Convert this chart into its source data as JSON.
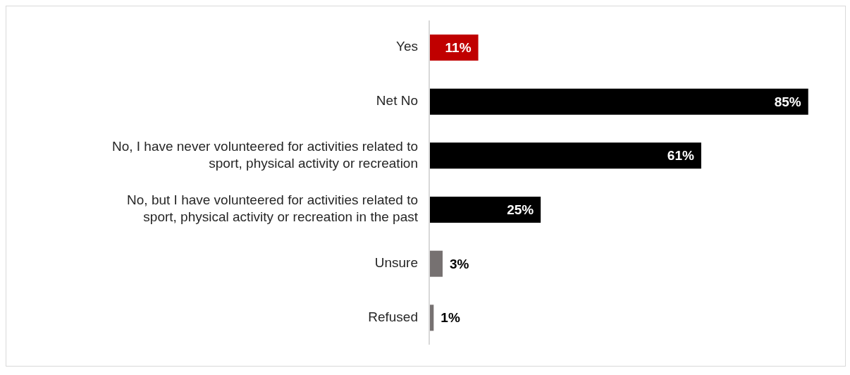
{
  "chart_data": {
    "type": "bar",
    "orientation": "horizontal",
    "categories": [
      "Yes",
      "Net No",
      "No, I have never volunteered for activities related to sport, physical activity or recreation",
      "No, but I have volunteered for activities related to sport, physical activity or recreation in the past",
      "Unsure",
      "Refused"
    ],
    "values": [
      11,
      85,
      61,
      25,
      3,
      1
    ],
    "colors": [
      "#c00000",
      "#000000",
      "#000000",
      "#000000",
      "#767171",
      "#767171"
    ],
    "value_labels": [
      "11%",
      "85%",
      "61%",
      "25%",
      "3%",
      "1%"
    ]
  }
}
